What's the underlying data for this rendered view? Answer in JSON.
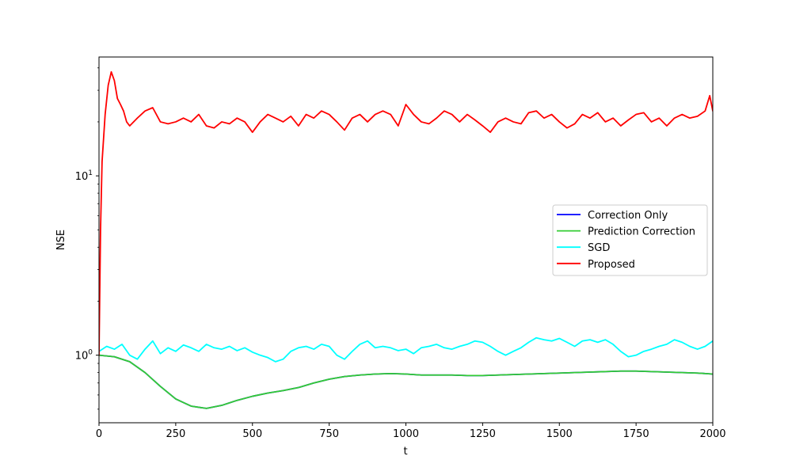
{
  "chart_data": {
    "type": "line",
    "xlabel": "t",
    "ylabel": "NSE",
    "xlim": [
      0,
      2000
    ],
    "ylim": [
      0.42,
      46
    ],
    "yscale": "log",
    "grid": false,
    "legend_placement": "center-right",
    "x_ticks": [
      0,
      250,
      500,
      750,
      1000,
      1250,
      1500,
      1750,
      2000
    ],
    "x_tick_labels": [
      "0",
      "250",
      "500",
      "750",
      "1000",
      "1250",
      "1500",
      "1750",
      "2000"
    ],
    "y_major_ticks": [
      1,
      10
    ],
    "y_tick_labels": [
      "10^0",
      "10^1"
    ],
    "series": [
      {
        "name": "Correction Only",
        "color": "#0000ff",
        "x": [
          0,
          50,
          100,
          150,
          200,
          250,
          300,
          350,
          400,
          450,
          500,
          550,
          600,
          650,
          700,
          750,
          800,
          850,
          900,
          950,
          1000,
          1050,
          1100,
          1150,
          1200,
          1250,
          1300,
          1350,
          1400,
          1450,
          1500,
          1550,
          1600,
          1650,
          1700,
          1750,
          1800,
          1850,
          1900,
          1950,
          2000
        ],
        "y": [
          1.0,
          0.98,
          0.92,
          0.8,
          0.67,
          0.57,
          0.52,
          0.505,
          0.525,
          0.56,
          0.59,
          0.615,
          0.635,
          0.66,
          0.7,
          0.735,
          0.76,
          0.775,
          0.785,
          0.79,
          0.785,
          0.775,
          0.775,
          0.775,
          0.77,
          0.77,
          0.775,
          0.78,
          0.785,
          0.79,
          0.795,
          0.8,
          0.805,
          0.81,
          0.815,
          0.815,
          0.81,
          0.805,
          0.8,
          0.795,
          0.785
        ]
      },
      {
        "name": "Prediction Correction",
        "color": "#33cc33",
        "x": [
          0,
          50,
          100,
          150,
          200,
          250,
          300,
          350,
          400,
          450,
          500,
          550,
          600,
          650,
          700,
          750,
          800,
          850,
          900,
          950,
          1000,
          1050,
          1100,
          1150,
          1200,
          1250,
          1300,
          1350,
          1400,
          1450,
          1500,
          1550,
          1600,
          1650,
          1700,
          1750,
          1800,
          1850,
          1900,
          1950,
          2000
        ],
        "y": [
          1.0,
          0.98,
          0.92,
          0.8,
          0.67,
          0.57,
          0.52,
          0.505,
          0.525,
          0.56,
          0.59,
          0.615,
          0.635,
          0.66,
          0.7,
          0.735,
          0.76,
          0.775,
          0.785,
          0.79,
          0.785,
          0.775,
          0.775,
          0.775,
          0.77,
          0.77,
          0.775,
          0.78,
          0.785,
          0.79,
          0.795,
          0.8,
          0.805,
          0.81,
          0.815,
          0.815,
          0.81,
          0.805,
          0.8,
          0.795,
          0.785
        ]
      },
      {
        "name": "SGD",
        "color": "#00ffff",
        "x": [
          0,
          25,
          50,
          75,
          100,
          125,
          150,
          175,
          200,
          225,
          250,
          275,
          300,
          325,
          350,
          375,
          400,
          425,
          450,
          475,
          500,
          525,
          550,
          575,
          600,
          625,
          650,
          675,
          700,
          725,
          750,
          775,
          800,
          825,
          850,
          875,
          900,
          925,
          950,
          975,
          1000,
          1025,
          1050,
          1075,
          1100,
          1125,
          1150,
          1175,
          1200,
          1225,
          1250,
          1275,
          1300,
          1325,
          1350,
          1375,
          1400,
          1425,
          1450,
          1475,
          1500,
          1525,
          1550,
          1575,
          1600,
          1625,
          1650,
          1675,
          1700,
          1725,
          1750,
          1775,
          1800,
          1825,
          1850,
          1875,
          1900,
          1925,
          1950,
          1975,
          2000
        ],
        "y": [
          1.05,
          1.12,
          1.08,
          1.15,
          1.0,
          0.95,
          1.08,
          1.2,
          1.02,
          1.1,
          1.05,
          1.14,
          1.1,
          1.05,
          1.15,
          1.1,
          1.08,
          1.12,
          1.06,
          1.1,
          1.04,
          1.0,
          0.97,
          0.92,
          0.95,
          1.05,
          1.1,
          1.12,
          1.08,
          1.15,
          1.12,
          1.0,
          0.95,
          1.05,
          1.15,
          1.2,
          1.1,
          1.12,
          1.1,
          1.06,
          1.08,
          1.02,
          1.1,
          1.12,
          1.15,
          1.1,
          1.08,
          1.12,
          1.15,
          1.2,
          1.18,
          1.12,
          1.05,
          1.0,
          1.05,
          1.1,
          1.18,
          1.25,
          1.22,
          1.2,
          1.24,
          1.18,
          1.12,
          1.2,
          1.22,
          1.18,
          1.22,
          1.15,
          1.05,
          0.98,
          1.0,
          1.05,
          1.08,
          1.12,
          1.15,
          1.22,
          1.18,
          1.12,
          1.08,
          1.12,
          1.2
        ]
      },
      {
        "name": "Proposed",
        "color": "#ff0000",
        "x": [
          0,
          5,
          10,
          20,
          30,
          40,
          50,
          60,
          70,
          80,
          90,
          100,
          125,
          150,
          175,
          200,
          225,
          250,
          275,
          300,
          325,
          350,
          375,
          400,
          425,
          450,
          475,
          500,
          525,
          550,
          575,
          600,
          625,
          650,
          675,
          700,
          725,
          750,
          775,
          800,
          825,
          850,
          875,
          900,
          925,
          950,
          975,
          1000,
          1025,
          1050,
          1075,
          1100,
          1125,
          1150,
          1175,
          1200,
          1225,
          1250,
          1275,
          1300,
          1325,
          1350,
          1375,
          1400,
          1425,
          1450,
          1475,
          1500,
          1525,
          1550,
          1575,
          1600,
          1625,
          1650,
          1675,
          1700,
          1725,
          1750,
          1775,
          1800,
          1825,
          1850,
          1875,
          1900,
          1925,
          1950,
          1975,
          1990,
          2000
        ],
        "y": [
          1.0,
          5.0,
          12.0,
          22.0,
          32.0,
          38.0,
          34.0,
          27.0,
          25.0,
          23.0,
          20.0,
          19.0,
          21.0,
          23.0,
          24.0,
          20.0,
          19.5,
          20.0,
          21.0,
          20.0,
          22.0,
          19.0,
          18.5,
          20.0,
          19.5,
          21.0,
          20.0,
          17.5,
          20.0,
          22.0,
          21.0,
          20.0,
          21.5,
          19.0,
          22.0,
          21.0,
          23.0,
          22.0,
          20.0,
          18.0,
          21.0,
          22.0,
          20.0,
          22.0,
          23.0,
          22.0,
          19.0,
          25.0,
          22.0,
          20.0,
          19.5,
          21.0,
          23.0,
          22.0,
          20.0,
          22.0,
          20.5,
          19.0,
          17.5,
          20.0,
          21.0,
          20.0,
          19.5,
          22.5,
          23.0,
          21.0,
          22.0,
          20.0,
          18.5,
          19.5,
          22.0,
          21.0,
          22.5,
          20.0,
          21.0,
          19.0,
          20.5,
          22.0,
          22.5,
          20.0,
          21.0,
          19.0,
          21.0,
          22.0,
          21.0,
          21.5,
          23.0,
          28.0,
          23.0
        ]
      }
    ]
  }
}
